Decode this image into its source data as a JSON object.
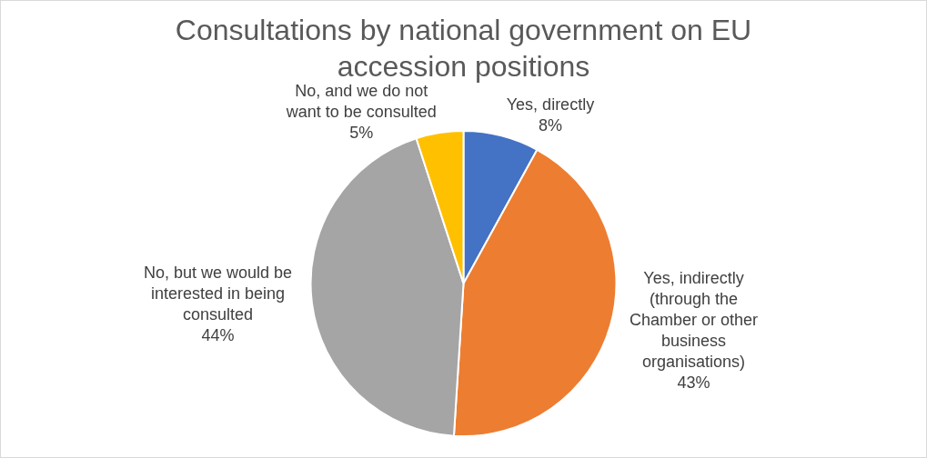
{
  "chart_data": {
    "type": "pie",
    "title": "Consultations by national government on EU accession positions",
    "categories": [
      "Yes, directly",
      "Yes, indirectly (through the Chamber or other business organisations)",
      "No, but we would be interested in being consulted",
      "No, and we do not want to be consulted"
    ],
    "values": [
      8,
      43,
      44,
      5
    ],
    "colors": [
      "#4472c4",
      "#ed7d31",
      "#a5a5a5",
      "#ffc000"
    ],
    "value_labels": [
      "8%",
      "43%",
      "44%",
      "5%"
    ],
    "legend": false
  }
}
